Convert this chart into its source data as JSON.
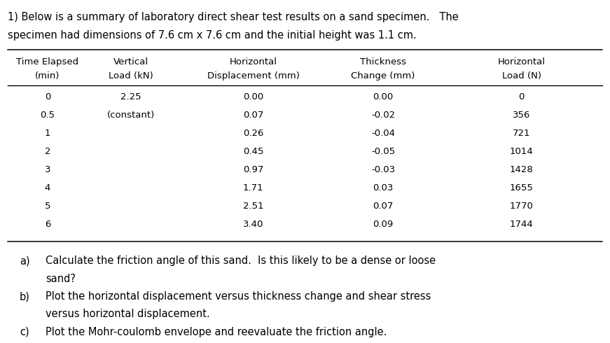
{
  "title_line1": "1) Below is a summary of laboratory direct shear test results on a sand specimen.   The",
  "title_line2": "specimen had dimensions of 7.6 cm x 7.6 cm and the initial height was 1.1 cm.",
  "col_headers": [
    [
      "Time Elapsed",
      "(min)"
    ],
    [
      "Vertical",
      "Load (kN)"
    ],
    [
      "Horizontal",
      "Displacement (mm)"
    ],
    [
      "Thickness",
      "Change (mm)"
    ],
    [
      "Horizontal",
      "Load (N)"
    ]
  ],
  "time_elapsed": [
    "0",
    "0.5",
    "1",
    "2",
    "3",
    "4",
    "5",
    "6"
  ],
  "vertical_load": [
    "2.25",
    "(constant)",
    "",
    "",
    "",
    "",
    "",
    ""
  ],
  "horizontal_disp": [
    "0.00",
    "0.07",
    "0.26",
    "0.45",
    "0.97",
    "1.71",
    "2.51",
    "3.40"
  ],
  "thickness_change": [
    "0.00",
    "-0.02",
    "-0.04",
    "-0.05",
    "-0.03",
    "0.03",
    "0.07",
    "0.09"
  ],
  "horizontal_load": [
    "0",
    "356",
    "721",
    "1014",
    "1428",
    "1655",
    "1770",
    "1744"
  ],
  "bg_color": "#ffffff",
  "text_color": "#000000",
  "font_size_title": 10.5,
  "font_size_table": 9.5,
  "font_size_questions": 10.5
}
